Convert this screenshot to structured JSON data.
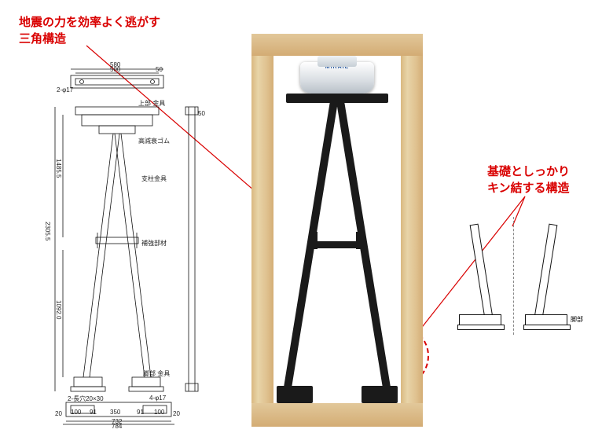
{
  "callouts": {
    "triangle_structure": "地震の力を効率よく逃がす\n三角構造",
    "foundation_connection": "基礎としっかり\nキン結する構造"
  },
  "product": {
    "brand": "MIRAIE"
  },
  "tech_drawing": {
    "top_dims": {
      "outer": "580",
      "inner": "500",
      "side": "50"
    },
    "hole_note_top": "2-φ17",
    "labels": {
      "top_metal": "上部 金具",
      "damping_rubber": "高減衰ゴム",
      "strut_metal": "支柱金具",
      "brace": "補強部材",
      "bottom_metal": "脚部 金具"
    },
    "vertical_dims": {
      "total": "2305.5",
      "upper": "1485.5",
      "mid_gap": "50",
      "lower": "1092.0"
    },
    "bottom_dims": {
      "hole_note_left": "2-長穴20×30",
      "hole_note_right": "4-φ17",
      "cells": [
        "100",
        "91",
        "350",
        "91",
        "100"
      ],
      "row2": "732",
      "row3": "784",
      "side_h": "20"
    }
  },
  "foot_detail": {
    "arrow_label": "脚部"
  },
  "colors": {
    "accent": "#d90000",
    "wood_light": "#e8d4a8",
    "wood_dark": "#d3ac74",
    "metal": "#1a1a1a",
    "brand_blue": "#2a5aa0"
  }
}
